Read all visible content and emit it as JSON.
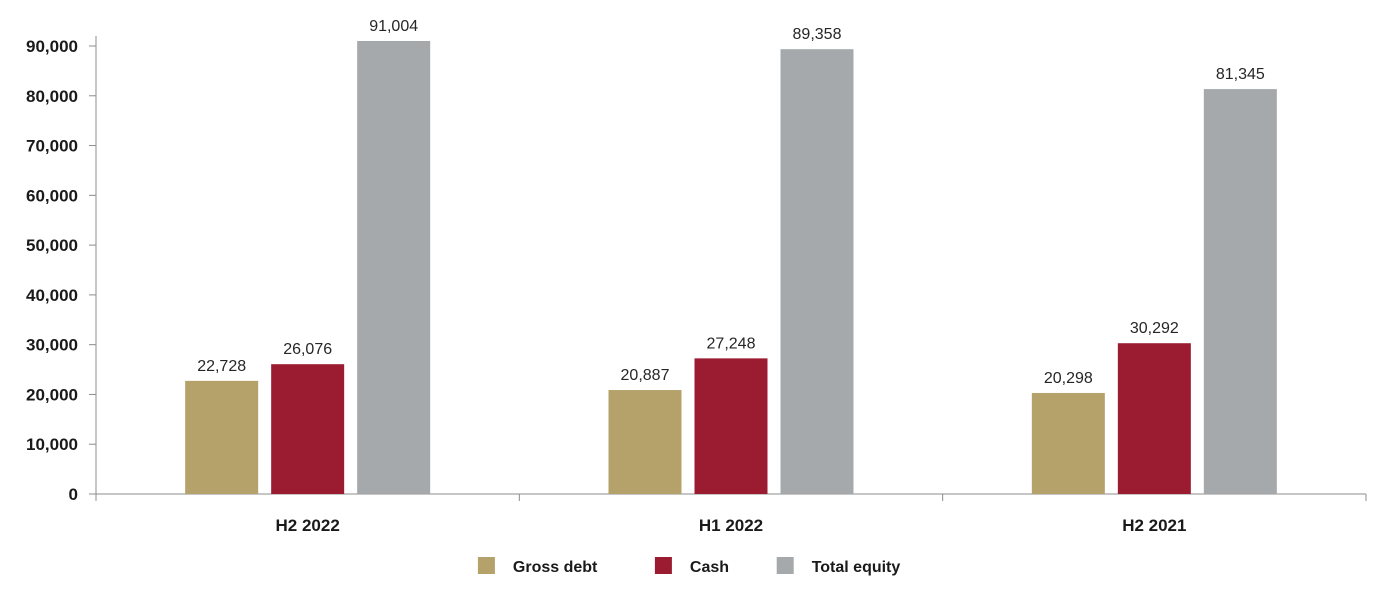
{
  "chart_data": {
    "type": "bar",
    "categories": [
      "H2 2022",
      "H1 2022",
      "H2 2021"
    ],
    "series": [
      {
        "name": "Gross debt",
        "values": [
          22728,
          20887,
          20298
        ],
        "labels": [
          "22,728",
          "20,887",
          "20,298"
        ],
        "color": "#b5a26a"
      },
      {
        "name": "Cash",
        "values": [
          26076,
          27248,
          30292
        ],
        "labels": [
          "26,076",
          "27,248",
          "30,292"
        ],
        "color": "#9b1b30"
      },
      {
        "name": "Total equity",
        "values": [
          91004,
          89358,
          81345
        ],
        "labels": [
          "91,004",
          "89,358",
          "81,345"
        ],
        "color": "#a5a9ab"
      }
    ],
    "y_ticks": [
      "0",
      "10,000",
      "20,000",
      "30,000",
      "40,000",
      "50,000",
      "60,000",
      "70,000",
      "80,000",
      "90,000"
    ],
    "ylim": [
      0,
      90000
    ],
    "title": "",
    "xlabel": "",
    "ylabel": "",
    "grid": false,
    "legend_position": "bottom-center"
  }
}
